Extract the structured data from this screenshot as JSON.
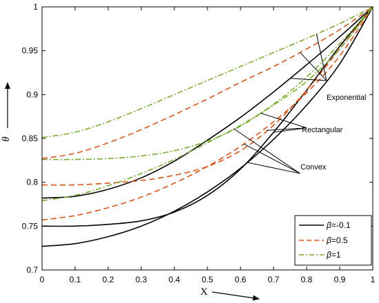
{
  "chart_data": {
    "type": "line",
    "title": "",
    "xlabel": "X",
    "ylabel": "θ",
    "xlim": [
      0,
      1
    ],
    "ylim": [
      0.7,
      1
    ],
    "xticks": [
      0,
      0.1,
      0.2,
      0.3,
      0.4,
      0.5,
      0.6,
      0.7,
      0.8,
      0.9,
      1
    ],
    "xtick_labels": [
      "0",
      "0.1",
      "0.2",
      "0.3",
      "0.4",
      "0.5",
      "0.6",
      "0.7",
      "0.8",
      "0.9",
      "1"
    ],
    "yticks": [
      0.7,
      0.75,
      0.8,
      0.85,
      0.9,
      0.95,
      1
    ],
    "ytick_labels": [
      "0.7",
      "0.75",
      "0.8",
      "0.85",
      "0.9",
      "0.95",
      "1"
    ],
    "grid": false,
    "legend_position": "bottom-right",
    "legend": [
      {
        "symbol": "β",
        "label": "=-0.1",
        "style": "solid",
        "color": "#000000"
      },
      {
        "symbol": "β",
        "label": "=0.5",
        "style": "dashed",
        "color": "#d95319"
      },
      {
        "symbol": "β",
        "label": "=1",
        "style": "dashdot",
        "color": "#77ac30"
      }
    ],
    "annotations": [
      {
        "text": "Exponential",
        "x": 0.86,
        "y": 0.916
      },
      {
        "text": "Rectangular",
        "x": 0.8,
        "y": 0.862
      },
      {
        "text": "Convex",
        "x": 0.78,
        "y": 0.81
      }
    ],
    "series": [
      {
        "beta": -0.1,
        "fin": "Exponential",
        "style": "solid",
        "color": "#000000",
        "x": [
          0,
          0.1,
          0.2,
          0.3,
          0.4,
          0.5,
          0.6,
          0.7,
          0.8,
          0.9,
          1
        ],
        "y": [
          0.782,
          0.784,
          0.792,
          0.805,
          0.824,
          0.848,
          0.874,
          0.903,
          0.934,
          0.966,
          1.0
        ]
      },
      {
        "beta": -0.1,
        "fin": "Rectangular",
        "style": "solid",
        "color": "#000000",
        "x": [
          0,
          0.1,
          0.2,
          0.3,
          0.4,
          0.5,
          0.6,
          0.7,
          0.8,
          0.9,
          1
        ],
        "y": [
          0.75,
          0.75,
          0.752,
          0.756,
          0.766,
          0.785,
          0.815,
          0.857,
          0.905,
          0.955,
          1.0
        ]
      },
      {
        "beta": -0.1,
        "fin": "Convex",
        "style": "solid",
        "color": "#000000",
        "x": [
          0,
          0.1,
          0.2,
          0.3,
          0.4,
          0.5,
          0.6,
          0.7,
          0.8,
          0.9,
          1
        ],
        "y": [
          0.727,
          0.73,
          0.738,
          0.75,
          0.767,
          0.789,
          0.816,
          0.849,
          0.888,
          0.935,
          1.0
        ]
      },
      {
        "beta": 0.5,
        "fin": "Exponential",
        "style": "dashed",
        "color": "#d95319",
        "x": [
          0,
          0.1,
          0.2,
          0.3,
          0.4,
          0.5,
          0.6,
          0.7,
          0.8,
          0.9,
          1
        ],
        "y": [
          0.827,
          0.833,
          0.845,
          0.86,
          0.877,
          0.895,
          0.914,
          0.932,
          0.952,
          0.974,
          1.0
        ]
      },
      {
        "beta": 0.5,
        "fin": "Rectangular",
        "style": "dashed",
        "color": "#d95319",
        "x": [
          0,
          0.1,
          0.2,
          0.3,
          0.4,
          0.5,
          0.6,
          0.7,
          0.8,
          0.9,
          1
        ],
        "y": [
          0.797,
          0.797,
          0.799,
          0.802,
          0.808,
          0.818,
          0.836,
          0.865,
          0.905,
          0.952,
          1.0
        ]
      },
      {
        "beta": 0.5,
        "fin": "Convex",
        "style": "dashed",
        "color": "#d95319",
        "x": [
          0,
          0.1,
          0.2,
          0.3,
          0.4,
          0.5,
          0.6,
          0.7,
          0.8,
          0.9,
          1
        ],
        "y": [
          0.757,
          0.762,
          0.771,
          0.783,
          0.799,
          0.818,
          0.841,
          0.869,
          0.902,
          0.944,
          1.0
        ]
      },
      {
        "beta": 1,
        "fin": "Exponential",
        "style": "dashdot",
        "color": "#77ac30",
        "x": [
          0,
          0.1,
          0.2,
          0.3,
          0.4,
          0.5,
          0.6,
          0.7,
          0.8,
          0.9,
          1
        ],
        "y": [
          0.851,
          0.857,
          0.869,
          0.884,
          0.9,
          0.916,
          0.932,
          0.948,
          0.964,
          0.981,
          1.0
        ]
      },
      {
        "beta": 1,
        "fin": "Rectangular",
        "style": "dashdot",
        "color": "#77ac30",
        "x": [
          0,
          0.1,
          0.2,
          0.3,
          0.4,
          0.5,
          0.6,
          0.7,
          0.8,
          0.9,
          1
        ],
        "y": [
          0.826,
          0.826,
          0.827,
          0.83,
          0.836,
          0.847,
          0.864,
          0.889,
          0.92,
          0.958,
          1.0
        ]
      },
      {
        "beta": 1,
        "fin": "Convex",
        "style": "dashdot",
        "color": "#77ac30",
        "x": [
          0,
          0.1,
          0.2,
          0.3,
          0.4,
          0.5,
          0.6,
          0.7,
          0.8,
          0.9,
          1
        ],
        "y": [
          0.779,
          0.785,
          0.796,
          0.81,
          0.826,
          0.845,
          0.865,
          0.888,
          0.915,
          0.952,
          1.0
        ]
      }
    ]
  }
}
